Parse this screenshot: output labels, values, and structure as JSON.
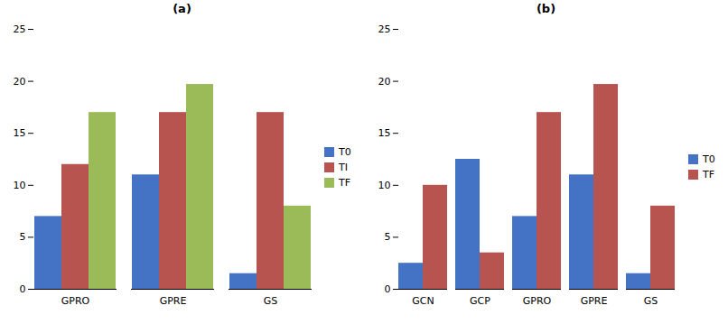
{
  "chart_data": [
    {
      "type": "bar",
      "title": "(a)",
      "categories": [
        "GPRO",
        "GPRE",
        "GS"
      ],
      "series": [
        {
          "name": "T0",
          "color": "#4472C4",
          "values": [
            7,
            11,
            1.5
          ]
        },
        {
          "name": "TI",
          "color": "#B85450",
          "values": [
            12,
            17,
            17
          ]
        },
        {
          "name": "TF",
          "color": "#9BBB59",
          "values": [
            17,
            19.7,
            8
          ]
        }
      ],
      "ylim": [
        0,
        25
      ],
      "yticks": [
        0,
        5,
        10,
        15,
        20,
        25
      ],
      "legend": "right"
    },
    {
      "type": "bar",
      "title": "(b)",
      "categories": [
        "GCN",
        "GCP",
        "GPRO",
        "GPRE",
        "GS"
      ],
      "series": [
        {
          "name": "T0",
          "color": "#4472C4",
          "values": [
            2.5,
            12.5,
            7,
            11,
            1.5
          ]
        },
        {
          "name": "TF",
          "color": "#B85450",
          "values": [
            10,
            3.5,
            17,
            19.7,
            8
          ]
        }
      ],
      "ylim": [
        0,
        25
      ],
      "yticks": [
        0,
        5,
        10,
        15,
        20,
        25
      ],
      "legend": "right"
    }
  ]
}
